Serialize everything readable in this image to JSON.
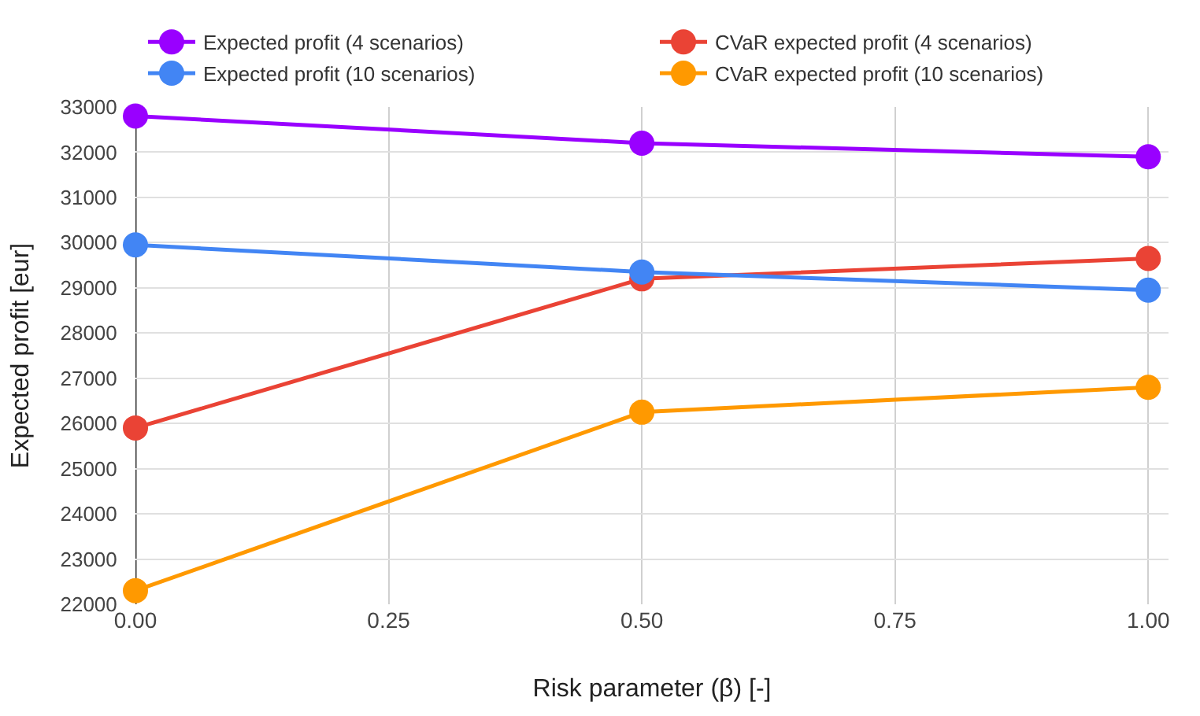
{
  "chart_data": {
    "type": "line",
    "xlabel": "Risk parameter (β) [-]",
    "ylabel": "Expected profit [eur]",
    "x": [
      0,
      0.5,
      1
    ],
    "series": [
      {
        "name": "Expected profit (4 scenarios)",
        "color": "#9900ff",
        "values": [
          32800,
          32200,
          31900
        ]
      },
      {
        "name": "Expected profit (10 scenarios)",
        "color": "#4285f4",
        "values": [
          29950,
          29350,
          28950
        ]
      },
      {
        "name": "CVaR expected profit (4 scenarios)",
        "color": "#ea4335",
        "values": [
          25900,
          29200,
          29650
        ]
      },
      {
        "name": "CVaR expected profit (10 scenarios)",
        "color": "#ff9900",
        "values": [
          22300,
          26250,
          26800
        ]
      }
    ],
    "xlim": [
      0,
      1.02
    ],
    "xticks": [
      {
        "value": 0,
        "label": "0.00"
      },
      {
        "value": 0.25,
        "label": "0.25"
      },
      {
        "value": 0.5,
        "label": "0.50"
      },
      {
        "value": 0.75,
        "label": "0.75"
      },
      {
        "value": 1,
        "label": "1.00"
      }
    ],
    "ylim": [
      22000,
      33000
    ],
    "yticks": [
      22000,
      23000,
      24000,
      25000,
      26000,
      27000,
      28000,
      29000,
      30000,
      31000,
      32000,
      33000
    ],
    "grid": true,
    "legend": "top",
    "marker": "circle",
    "line_style": "solid"
  }
}
